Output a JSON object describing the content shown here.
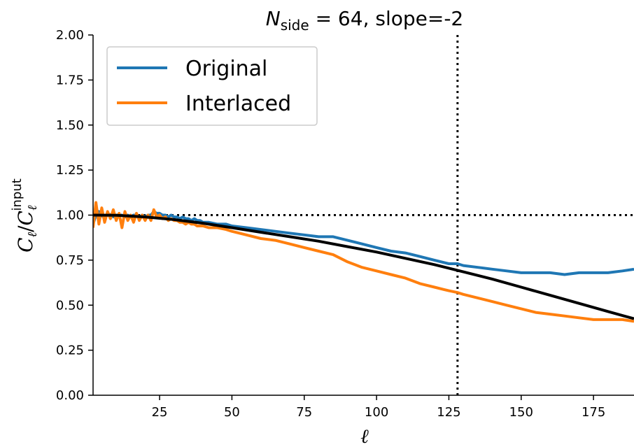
{
  "chart_data": {
    "type": "line",
    "title": {
      "prefix": "N",
      "subscript": "side",
      "rest": " = 64, slope=-2"
    },
    "xlabel": "ℓ",
    "ylabel": {
      "main": "C",
      "sub1": "ℓ",
      "slash": "/",
      "main2": "C",
      "sub2": "ℓ",
      "sup2": "input"
    },
    "xlim": [
      2,
      189
    ],
    "ylim": [
      0,
      2
    ],
    "xticks": [
      25,
      50,
      75,
      100,
      125,
      150,
      175
    ],
    "xtick_labels": [
      "25",
      "50",
      "75",
      "100",
      "125",
      "150",
      "175"
    ],
    "yticks": [
      0,
      0.25,
      0.5,
      0.75,
      1.0,
      1.25,
      1.5,
      1.75,
      2.0
    ],
    "ytick_labels": [
      "0.00",
      "0.25",
      "0.50",
      "0.75",
      "1.00",
      "1.25",
      "1.50",
      "1.75",
      "2.00"
    ],
    "grid": false,
    "legend_position": "upper-left",
    "reference_lines": [
      {
        "orientation": "horizontal",
        "value": 1.0,
        "style": "dotted",
        "color": "#000000"
      },
      {
        "orientation": "vertical",
        "value": 128,
        "style": "dotted",
        "color": "#000000"
      }
    ],
    "series": [
      {
        "name": "Original",
        "color": "#1f77b4",
        "x": [
          2,
          3,
          4,
          5,
          6,
          7,
          8,
          9,
          10,
          11,
          12,
          13,
          14,
          15,
          16,
          17,
          18,
          19,
          20,
          21,
          22,
          23,
          24,
          25,
          26,
          27,
          28,
          29,
          30,
          31,
          32,
          33,
          34,
          35,
          36,
          37,
          38,
          39,
          40,
          42,
          45,
          48,
          50,
          55,
          60,
          65,
          70,
          75,
          80,
          85,
          90,
          95,
          100,
          105,
          110,
          115,
          120,
          125,
          128,
          130,
          135,
          140,
          145,
          150,
          155,
          160,
          165,
          170,
          175,
          180,
          185,
          189
        ],
        "y": [
          0.95,
          1.0,
          1.02,
          1.0,
          0.98,
          1.01,
          1.0,
          0.99,
          1.0,
          1.0,
          1.0,
          0.99,
          1.0,
          0.99,
          1.0,
          1.0,
          0.99,
          1.0,
          0.99,
          1.0,
          1.0,
          1.02,
          1.01,
          1.01,
          1.0,
          1.0,
          0.99,
          1.0,
          0.99,
          0.99,
          0.98,
          0.99,
          0.98,
          0.98,
          0.97,
          0.98,
          0.97,
          0.97,
          0.96,
          0.96,
          0.95,
          0.95,
          0.94,
          0.93,
          0.92,
          0.91,
          0.9,
          0.89,
          0.88,
          0.88,
          0.86,
          0.84,
          0.82,
          0.8,
          0.79,
          0.77,
          0.75,
          0.73,
          0.73,
          0.72,
          0.71,
          0.7,
          0.69,
          0.68,
          0.68,
          0.68,
          0.67,
          0.68,
          0.68,
          0.68,
          0.69,
          0.7
        ]
      },
      {
        "name": "Interlaced",
        "color": "#ff7f0e",
        "x": [
          2,
          3,
          4,
          5,
          6,
          7,
          8,
          9,
          10,
          11,
          12,
          13,
          14,
          15,
          16,
          17,
          18,
          19,
          20,
          21,
          22,
          23,
          24,
          25,
          26,
          27,
          28,
          29,
          30,
          31,
          32,
          33,
          34,
          35,
          36,
          37,
          38,
          39,
          40,
          42,
          45,
          48,
          50,
          55,
          60,
          65,
          70,
          75,
          80,
          85,
          90,
          95,
          100,
          105,
          110,
          115,
          120,
          125,
          128,
          130,
          135,
          140,
          145,
          150,
          155,
          160,
          165,
          170,
          175,
          180,
          185,
          189
        ],
        "y": [
          0.93,
          1.07,
          0.95,
          1.04,
          0.96,
          1.02,
          0.98,
          1.03,
          0.97,
          1.01,
          0.93,
          1.02,
          0.97,
          1.0,
          0.96,
          1.01,
          0.97,
          1.0,
          0.97,
          1.0,
          0.97,
          1.03,
          0.99,
          1.0,
          0.98,
          0.99,
          0.97,
          0.98,
          0.97,
          0.97,
          0.96,
          0.96,
          0.95,
          0.96,
          0.95,
          0.95,
          0.94,
          0.94,
          0.94,
          0.93,
          0.93,
          0.92,
          0.91,
          0.89,
          0.87,
          0.86,
          0.84,
          0.82,
          0.8,
          0.78,
          0.74,
          0.71,
          0.69,
          0.67,
          0.65,
          0.62,
          0.6,
          0.58,
          0.57,
          0.56,
          0.54,
          0.52,
          0.5,
          0.48,
          0.46,
          0.45,
          0.44,
          0.43,
          0.42,
          0.42,
          0.42,
          0.41
        ]
      },
      {
        "name": "",
        "color": "#000000",
        "x": [
          2,
          10,
          20,
          30,
          40,
          50,
          60,
          70,
          80,
          90,
          100,
          110,
          120,
          130,
          140,
          150,
          160,
          170,
          180,
          189
        ],
        "y": [
          1.0,
          0.999,
          0.99,
          0.975,
          0.955,
          0.93,
          0.905,
          0.88,
          0.855,
          0.825,
          0.795,
          0.76,
          0.725,
          0.685,
          0.645,
          0.6,
          0.555,
          0.51,
          0.465,
          0.425
        ]
      }
    ]
  }
}
